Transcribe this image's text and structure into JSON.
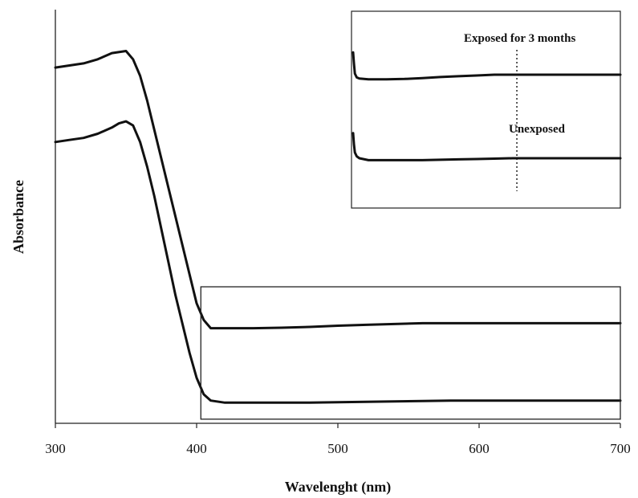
{
  "chart_data": {
    "type": "line",
    "title": "",
    "xlabel": "Wavelenght (nm)",
    "ylabel": "Absorbance",
    "xlim": [
      300,
      700
    ],
    "x_ticks": [
      "300",
      "400",
      "500",
      "600",
      "700"
    ],
    "y_ticks": [],
    "grid": false,
    "main_series": [
      {
        "x": [
          300,
          310,
          320,
          330,
          340,
          350,
          355,
          360,
          365,
          370,
          375,
          380,
          385,
          390,
          395,
          400,
          405,
          410,
          420,
          440,
          460,
          480,
          500,
          520,
          540,
          560,
          580,
          600,
          620,
          640,
          660,
          680,
          700
        ],
        "y": [
          0.86,
          0.865,
          0.87,
          0.88,
          0.895,
          0.9,
          0.88,
          0.84,
          0.78,
          0.71,
          0.64,
          0.57,
          0.5,
          0.43,
          0.36,
          0.29,
          0.25,
          0.23,
          0.23,
          0.23,
          0.231,
          0.233,
          0.236,
          0.238,
          0.24,
          0.242,
          0.242,
          0.242,
          0.242,
          0.242,
          0.242,
          0.242,
          0.242
        ]
      },
      {
        "x": [
          300,
          310,
          320,
          330,
          340,
          345,
          350,
          355,
          360,
          365,
          370,
          375,
          380,
          385,
          390,
          395,
          400,
          405,
          410,
          420,
          440,
          460,
          480,
          500,
          520,
          540,
          560,
          580,
          600,
          620,
          640,
          660,
          680,
          700
        ],
        "y": [
          0.68,
          0.685,
          0.69,
          0.7,
          0.715,
          0.725,
          0.73,
          0.72,
          0.68,
          0.62,
          0.55,
          0.47,
          0.39,
          0.31,
          0.24,
          0.17,
          0.11,
          0.07,
          0.055,
          0.05,
          0.05,
          0.05,
          0.05,
          0.051,
          0.052,
          0.053,
          0.054,
          0.055,
          0.055,
          0.055,
          0.055,
          0.055,
          0.055,
          0.055
        ]
      }
    ],
    "zoom_box": {
      "x_range": [
        403,
        700
      ],
      "y_range": [
        0.01,
        0.33
      ]
    },
    "inset": {
      "labels": [
        "Exposed for 3 months",
        "Unexposed"
      ],
      "dotted_marker_x": 585,
      "series": [
        {
          "x": [
            403,
            404,
            405,
            407,
            410,
            420,
            440,
            460,
            480,
            500,
            520,
            540,
            560,
            580,
            600,
            620,
            640,
            660,
            680,
            700
          ],
          "y": [
            0.3,
            0.27,
            0.245,
            0.235,
            0.232,
            0.23,
            0.23,
            0.231,
            0.233,
            0.236,
            0.238,
            0.24,
            0.242,
            0.242,
            0.242,
            0.242,
            0.242,
            0.242,
            0.242,
            0.242
          ]
        },
        {
          "x": [
            403,
            404,
            405,
            407,
            410,
            420,
            440,
            460,
            480,
            500,
            520,
            540,
            560,
            580,
            600,
            620,
            640,
            660,
            680,
            700
          ],
          "y": [
            0.12,
            0.09,
            0.07,
            0.06,
            0.055,
            0.05,
            0.05,
            0.05,
            0.05,
            0.051,
            0.052,
            0.053,
            0.054,
            0.055,
            0.055,
            0.055,
            0.055,
            0.055,
            0.055,
            0.055
          ]
        }
      ]
    }
  }
}
